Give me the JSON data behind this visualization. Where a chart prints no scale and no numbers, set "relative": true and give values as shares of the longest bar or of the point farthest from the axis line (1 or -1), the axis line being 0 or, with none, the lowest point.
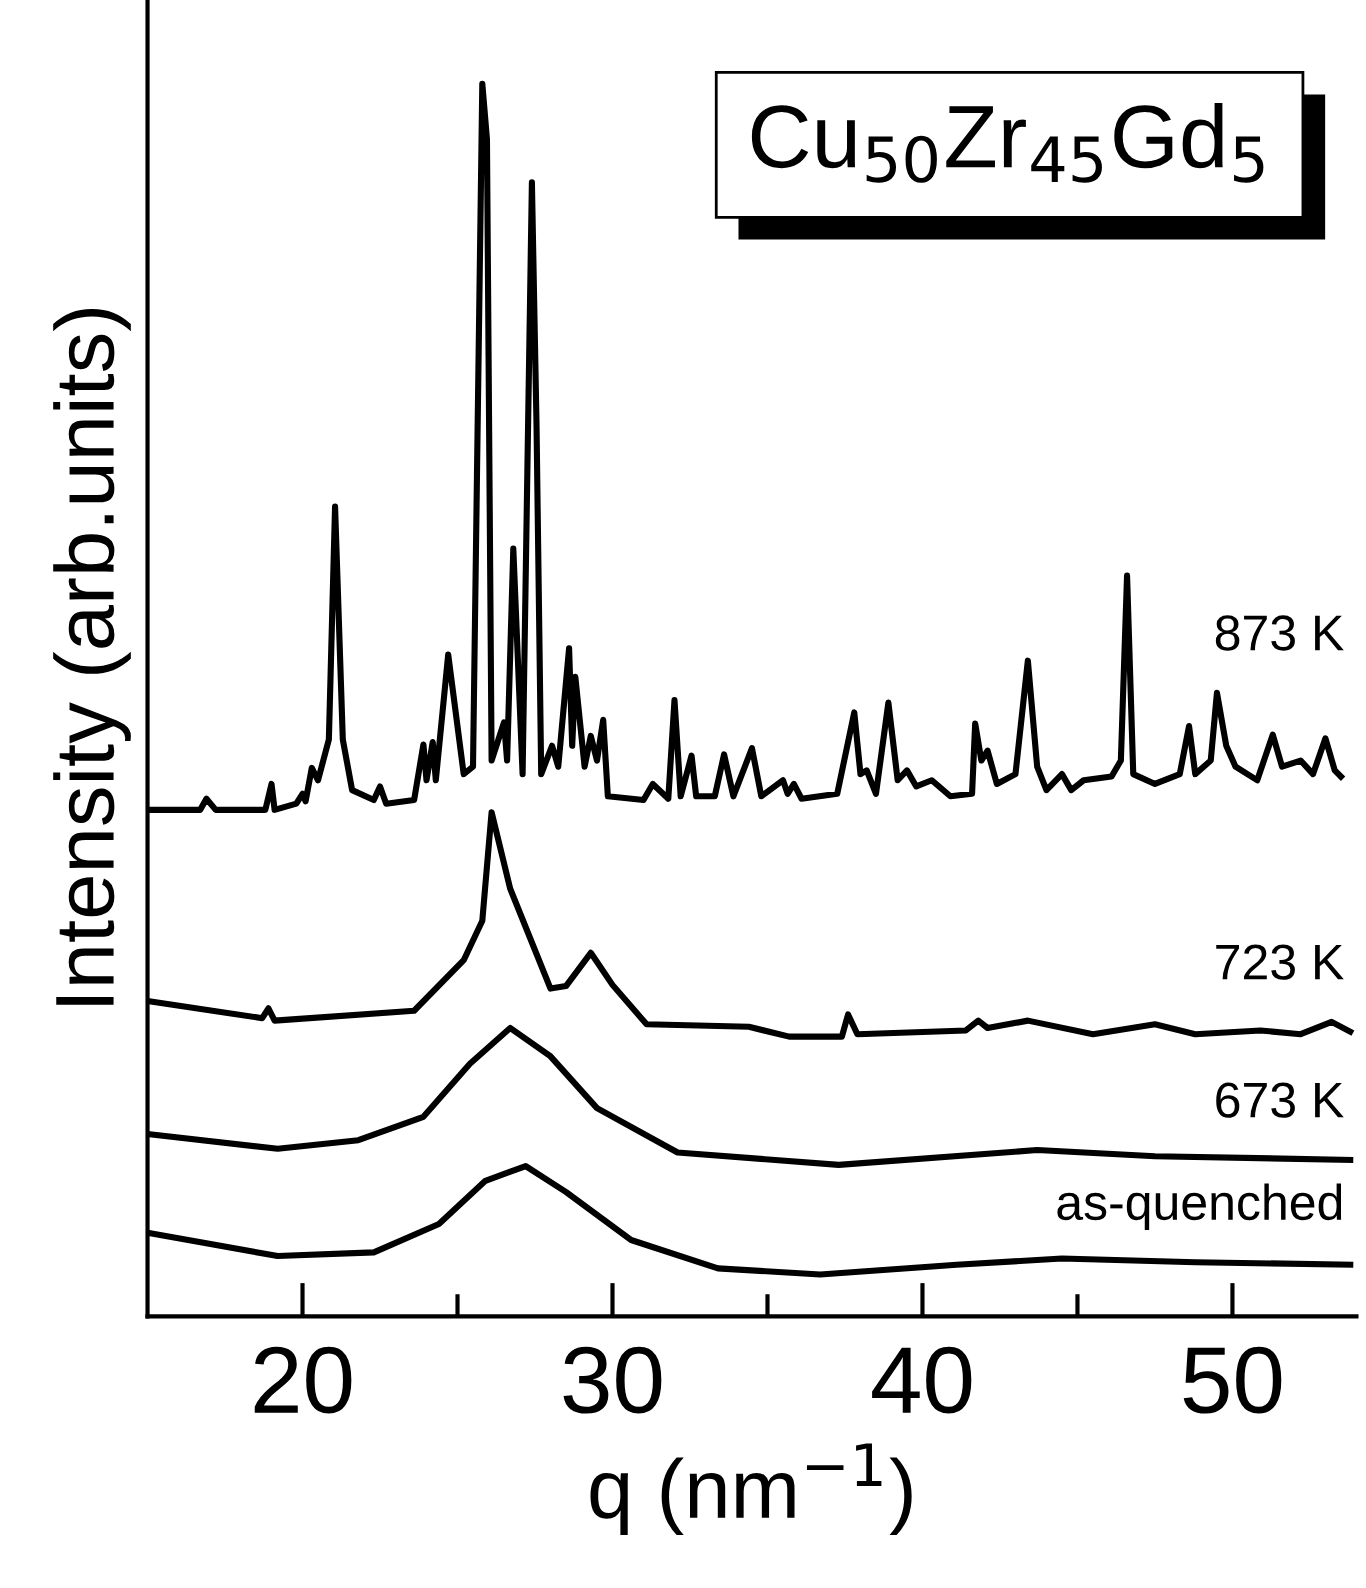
{
  "chart_data": {
    "type": "line",
    "relative": true,
    "xlabel": "q (nm$^{−1}$)",
    "ylabel": "Intensity (arb.units)",
    "annotations": [
      "Cu$_{50}$Zr$_{45}$Gd$_{5}$"
    ],
    "xlim": [
      15,
      54
    ],
    "xticks": [
      20,
      {
        "value": 25,
        "label": null
      },
      30,
      {
        "value": 35,
        "label": null
      },
      40,
      {
        "value": 45,
        "label": null
      },
      50
    ],
    "tick_labels": "x",
    "grid": false,
    "legend": false,
    "marker": "none",
    "line_style": "solid",
    "series": [
      {
        "name": "873 K",
        "color": "#000000",
        "x": [
          15.06,
          16.7,
          16.9,
          17.2,
          18.8,
          19.0,
          19.1,
          19.8,
          20.0,
          20.1,
          20.3,
          20.5,
          20.85,
          21.05,
          21.3,
          21.6,
          22.3,
          22.5,
          22.7,
          23.6,
          23.9,
          24.0,
          24.2,
          24.3,
          24.7,
          25.2,
          25.5,
          25.8,
          25.95,
          26.1,
          26.5,
          26.6,
          26.8,
          27.1,
          27.4,
          27.55,
          27.7,
          28.05,
          28.25,
          28.6,
          28.7,
          28.8,
          29.1,
          29.3,
          29.5,
          29.7,
          29.85,
          31.0,
          31.3,
          31.8,
          32.0,
          32.2,
          32.55,
          32.7,
          33.3,
          33.6,
          33.9,
          34.5,
          34.8,
          35.5,
          35.65,
          35.85,
          36.1,
          37.25,
          37.8,
          38.0,
          38.2,
          38.5,
          38.9,
          39.2,
          39.5,
          39.8,
          40.3,
          40.9,
          41.6,
          41.7,
          41.9,
          42.1,
          42.4,
          43.0,
          43.4,
          43.7,
          44.0,
          44.5,
          44.8,
          45.2,
          46.1,
          46.4,
          46.6,
          46.8,
          47.5,
          48.3,
          48.6,
          48.8,
          49.3,
          49.5,
          49.8,
          50.1,
          50.8,
          51.3,
          51.6,
          52.2,
          52.6,
          53.0,
          53.3,
          53.5
        ],
        "values": [
          0.411,
          0.411,
          0.42,
          0.411,
          0.411,
          0.432,
          0.411,
          0.416,
          0.424,
          0.418,
          0.445,
          0.435,
          0.468,
          0.657,
          0.468,
          0.427,
          0.419,
          0.43,
          0.416,
          0.419,
          0.464,
          0.435,
          0.466,
          0.435,
          0.537,
          0.44,
          0.446,
          1.0,
          0.955,
          0.451,
          0.482,
          0.451,
          0.623,
          0.44,
          0.92,
          0.722,
          0.44,
          0.463,
          0.446,
          0.542,
          0.463,
          0.519,
          0.446,
          0.471,
          0.451,
          0.484,
          0.422,
          0.419,
          0.432,
          0.42,
          0.5,
          0.422,
          0.455,
          0.422,
          0.422,
          0.456,
          0.422,
          0.461,
          0.422,
          0.435,
          0.424,
          0.432,
          0.42,
          0.424,
          0.49,
          0.44,
          0.443,
          0.424,
          0.498,
          0.435,
          0.443,
          0.43,
          0.435,
          0.422,
          0.424,
          0.481,
          0.451,
          0.459,
          0.432,
          0.44,
          0.532,
          0.446,
          0.427,
          0.44,
          0.427,
          0.435,
          0.438,
          0.451,
          0.601,
          0.44,
          0.432,
          0.44,
          0.479,
          0.44,
          0.451,
          0.506,
          0.463,
          0.446,
          0.435,
          0.472,
          0.446,
          0.451,
          0.44,
          0.469,
          0.443,
          0.438
        ]
      },
      {
        "name": "723 K",
        "color": "#000000",
        "x": [
          15,
          18.7,
          18.9,
          19.1,
          23.6,
          25.2,
          25.8,
          26.1,
          26.7,
          28.0,
          28.5,
          29.3,
          30.0,
          31.1,
          34.4,
          35.7,
          37.4,
          37.6,
          37.9,
          41.4,
          41.8,
          42.1,
          43.4,
          45.5,
          47.5,
          48.8,
          50.9,
          52.2,
          53.2,
          53.8
        ],
        "values": [
          0.256,
          0.242,
          0.25,
          0.24,
          0.248,
          0.289,
          0.321,
          0.409,
          0.347,
          0.266,
          0.268,
          0.295,
          0.269,
          0.237,
          0.235,
          0.227,
          0.227,
          0.245,
          0.229,
          0.232,
          0.24,
          0.234,
          0.24,
          0.229,
          0.237,
          0.229,
          0.232,
          0.229,
          0.239,
          0.231
        ]
      },
      {
        "name": "673 K",
        "color": "#000000",
        "x": [
          15,
          19.2,
          21.8,
          23.9,
          25.4,
          26.7,
          28.0,
          29.5,
          32.1,
          37.3,
          43.7,
          47.5,
          53.8
        ],
        "values": [
          0.148,
          0.136,
          0.143,
          0.162,
          0.205,
          0.234,
          0.211,
          0.169,
          0.133,
          0.123,
          0.135,
          0.13,
          0.127
        ]
      },
      {
        "name": "as-quenched",
        "color": "#000000",
        "x": [
          15,
          19.2,
          22.3,
          24.4,
          25.9,
          27.2,
          28.5,
          30.6,
          33.4,
          36.7,
          41.1,
          44.5,
          48.8,
          53.8
        ],
        "values": [
          0.068,
          0.049,
          0.052,
          0.075,
          0.11,
          0.122,
          0.101,
          0.062,
          0.039,
          0.034,
          0.042,
          0.047,
          0.044,
          0.042
        ]
      }
    ]
  }
}
